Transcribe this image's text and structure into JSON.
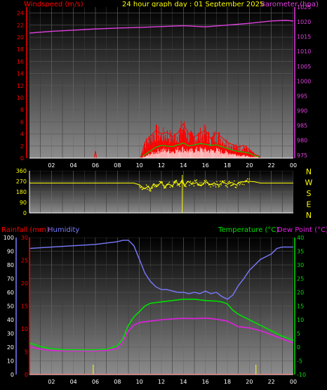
{
  "header": {
    "left_label": "Windspeed (m/s)",
    "center_label": "24 hour graph day : 01 September 2025",
    "right_label": "Barometer (hpa)"
  },
  "colors": {
    "background": "#000000",
    "wind": "#ff0000",
    "gust": "#ff0000",
    "wind_avg": "#00cc00",
    "wind_low": "#ffffff",
    "barometer": "#e040e0",
    "direction": "#ffff00",
    "humidity": "#7a7aff",
    "temperature": "#00e000",
    "dewpoint": "#e020e0",
    "rainfall": "#ff0000",
    "header_center": "#ffff00",
    "axis_text": "#ffffff",
    "left_label": "#ff0000",
    "right_label": "#e040e0",
    "humidity_label": "#7a7aff",
    "temperature_label": "#00e000",
    "dewpoint_label": "#e020e0"
  },
  "chart_data": [
    {
      "type": "line",
      "title": "24 hour graph day : 01 September 2025",
      "x_ticks": [
        "02",
        "04",
        "06",
        "08",
        "10",
        "12",
        "14",
        "16",
        "18",
        "20",
        "22",
        "00"
      ],
      "xlim": [
        0,
        24
      ],
      "y_left": {
        "label": "Windspeed (m/s)",
        "ylim": [
          0,
          25
        ],
        "ticks": [
          0,
          2,
          4,
          6,
          8,
          10,
          12,
          14,
          16,
          18,
          20,
          22,
          24
        ]
      },
      "y_right": {
        "label": "Barometer (hpa)",
        "ylim": [
          974,
          1025
        ],
        "ticks": [
          975,
          980,
          985,
          990,
          995,
          1000,
          1005,
          1010,
          1015,
          1020,
          1025
        ]
      },
      "series": [
        {
          "name": "Barometer (hpa)",
          "axis": "right",
          "x": [
            0,
            2,
            4,
            6,
            8,
            10,
            12,
            14,
            16,
            18,
            20,
            22,
            23.3,
            24
          ],
          "values": [
            1016.2,
            1016.8,
            1017.2,
            1017.6,
            1017.9,
            1018.1,
            1018.4,
            1018.7,
            1018.3,
            1018.9,
            1019.5,
            1020.3,
            1020.5,
            1020.3
          ]
        },
        {
          "name": "Windspeed",
          "axis": "left",
          "x": [
            0,
            5.9,
            6,
            6.1,
            6.2,
            10.1,
            10.5,
            11,
            11.5,
            12,
            12.5,
            13,
            13.5,
            14,
            14.5,
            15,
            15.5,
            16,
            16.5,
            17,
            17.5,
            18,
            18.5,
            19,
            19.5,
            20,
            20.5,
            20.9,
            21,
            24
          ],
          "values": [
            0,
            0,
            1.2,
            0,
            0,
            0,
            2.6,
            3.6,
            4.6,
            4.0,
            4.3,
            3.5,
            4.2,
            5.7,
            3.9,
            3.5,
            4.1,
            4.6,
            3.2,
            4.2,
            3.4,
            2.6,
            2.2,
            1.8,
            2.1,
            1.4,
            0.6,
            0.3,
            0,
            0
          ]
        },
        {
          "name": "Wind average",
          "axis": "left",
          "x": [
            10.3,
            11,
            11.5,
            12,
            12.5,
            13,
            13.5,
            14,
            14.5,
            15,
            15.5,
            16,
            16.5,
            17,
            17.5,
            18,
            18.5,
            19,
            19.5,
            20,
            20.5,
            20.9
          ],
          "values": [
            0.3,
            1.2,
            1.8,
            2.1,
            2.0,
            1.9,
            2.2,
            2.5,
            2.0,
            2.2,
            2.4,
            2.3,
            2.1,
            2.2,
            1.9,
            1.6,
            1.3,
            1.1,
            1.0,
            0.8,
            0.4,
            0.2
          ]
        },
        {
          "name": "Wind low",
          "axis": "left",
          "x": [
            10.5,
            11,
            11.5,
            12,
            12.5,
            13,
            13.5,
            14,
            14.5,
            15,
            15.5,
            16,
            16.5,
            17,
            17.5,
            18,
            18.5,
            19,
            19.5,
            20
          ],
          "values": [
            0.2,
            0.7,
            1.0,
            1.3,
            1.2,
            1.1,
            1.4,
            1.5,
            1.1,
            1.3,
            1.4,
            1.3,
            1.2,
            1.3,
            1.0,
            0.9,
            0.7,
            0.5,
            0.4,
            0.2
          ]
        }
      ]
    },
    {
      "type": "line",
      "title": "",
      "x_ticks": [
        "02",
        "04",
        "06",
        "08",
        "10",
        "12",
        "14",
        "16",
        "18",
        "20",
        "22",
        "00"
      ],
      "xlim": [
        0,
        24
      ],
      "y_left": {
        "label": "",
        "ylim": [
          0,
          360
        ],
        "ticks": [
          0,
          90,
          180,
          270,
          360
        ]
      },
      "y_right": {
        "label": "",
        "ticks": [
          "N",
          "W",
          "S",
          "E",
          "N"
        ]
      },
      "series": [
        {
          "name": "Wind direction",
          "axis": "left",
          "x": [
            0,
            9.5,
            10,
            10.2,
            10.5,
            10.8,
            11,
            11.3,
            11.6,
            12,
            12.3,
            12.6,
            13,
            13.3,
            13.6,
            13.9,
            14.1,
            14.4,
            14.8,
            15.2,
            15.6,
            16,
            16.4,
            16.8,
            17.2,
            17.6,
            18,
            18.4,
            18.8,
            19.2,
            19.6,
            20,
            20.5,
            21,
            24
          ],
          "values": [
            255,
            255,
            240,
            225,
            205,
            230,
            200,
            250,
            225,
            265,
            215,
            250,
            230,
            275,
            235,
            285,
            230,
            270,
            245,
            260,
            230,
            270,
            240,
            255,
            235,
            265,
            245,
            260,
            240,
            265,
            265,
            270,
            265,
            255,
            255
          ]
        }
      ]
    },
    {
      "type": "line",
      "title": "",
      "x_ticks": [
        "02",
        "04",
        "06",
        "08",
        "10",
        "12",
        "14",
        "16",
        "18",
        "20",
        "22",
        "00"
      ],
      "xlim": [
        0,
        24
      ],
      "y_left_outer": {
        "label": "Humidity",
        "ylim": [
          0,
          100
        ],
        "ticks": [
          0,
          10,
          20,
          30,
          40,
          50,
          60,
          70,
          80,
          90,
          100
        ]
      },
      "y_left_inner": {
        "label": "Rainfall (mm)",
        "ylim": [
          0,
          30
        ],
        "ticks": [
          0,
          5,
          10,
          15,
          20,
          25,
          30
        ]
      },
      "y_right": {
        "label": "Temperature (°C)",
        "label2": "Dew Point (°C)",
        "ylim": [
          -10,
          40
        ],
        "ticks": [
          -10,
          -5,
          0,
          5,
          10,
          15,
          20,
          25,
          30,
          35,
          40
        ]
      },
      "series": [
        {
          "name": "Humidity",
          "axis": "left_outer",
          "x": [
            0,
            2,
            4,
            6,
            8,
            8.5,
            9,
            9.5,
            10,
            10.5,
            11,
            11.5,
            12,
            12.5,
            13,
            13.5,
            14,
            14.5,
            15,
            15.5,
            16,
            16.5,
            17,
            17.5,
            18,
            18.5,
            19,
            19.5,
            20,
            20.5,
            21,
            22,
            22.5,
            23,
            24
          ],
          "values": [
            92,
            93,
            94,
            95,
            97,
            98,
            98,
            94,
            84,
            74,
            68,
            64,
            62,
            62,
            61,
            60,
            60,
            59,
            60,
            59,
            61,
            59,
            60,
            57,
            55,
            58,
            65,
            70,
            76,
            80,
            84,
            88,
            92,
            93,
            93
          ]
        },
        {
          "name": "Temperature (°C)",
          "axis": "right",
          "x": [
            0,
            1,
            2,
            3,
            4,
            5,
            6,
            7,
            8,
            8.5,
            9,
            9.5,
            10,
            10.5,
            11,
            12,
            13,
            14,
            15,
            16,
            17,
            17.5,
            18,
            18.5,
            19,
            20,
            21,
            22,
            23,
            24
          ],
          "values": [
            1.5,
            0.2,
            -0.6,
            -0.9,
            -1.0,
            -1.0,
            -1.0,
            -0.8,
            0.5,
            3,
            8,
            11,
            13,
            15,
            16,
            16.5,
            17,
            17.5,
            17.5,
            17,
            16.8,
            16.5,
            15.8,
            13.5,
            12,
            10,
            8,
            6,
            4,
            2.5
          ]
        },
        {
          "name": "Dew Point (°C)",
          "axis": "right",
          "x": [
            0,
            1,
            2,
            3,
            4,
            5,
            6,
            7,
            8,
            8.5,
            9,
            9.5,
            10,
            11,
            12,
            13,
            14,
            15,
            16,
            17,
            18,
            18.5,
            19,
            20,
            21,
            22,
            23,
            24
          ],
          "values": [
            0.2,
            -0.8,
            -1.2,
            -1.4,
            -1.4,
            -1.4,
            -1.4,
            -1.2,
            -0.5,
            2,
            6,
            8,
            9,
            9.5,
            10,
            10.3,
            10.5,
            10.4,
            10.6,
            10.2,
            9.5,
            8.5,
            7.5,
            7,
            6,
            4.5,
            3,
            1.5
          ]
        },
        {
          "name": "Rainfall (mm)",
          "axis": "left_inner",
          "x": [
            0,
            5.8,
            24
          ],
          "values": [
            0,
            0,
            0
          ]
        }
      ],
      "markers_x": [
        5.8,
        20.6
      ]
    }
  ]
}
